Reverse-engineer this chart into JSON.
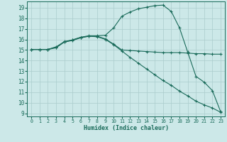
{
  "xlabel": "Humidex (Indice chaleur)",
  "bg_color": "#cce8e8",
  "grid_color": "#aacccc",
  "line_color": "#1a6b5a",
  "xlim": [
    -0.5,
    23.5
  ],
  "ylim": [
    8.7,
    19.6
  ],
  "yticks": [
    9,
    10,
    11,
    12,
    13,
    14,
    15,
    16,
    17,
    18,
    19
  ],
  "xticks": [
    0,
    1,
    2,
    3,
    4,
    5,
    6,
    7,
    8,
    9,
    10,
    11,
    12,
    13,
    14,
    15,
    16,
    17,
    18,
    19,
    20,
    21,
    22,
    23
  ],
  "line1_x": [
    0,
    1,
    2,
    3,
    4,
    5,
    6,
    7,
    8,
    9,
    10,
    11,
    12,
    13,
    14,
    15,
    16,
    17,
    18,
    19,
    20,
    21,
    22,
    23
  ],
  "line1_y": [
    15.05,
    15.05,
    15.05,
    15.25,
    15.8,
    15.95,
    16.2,
    16.3,
    16.3,
    16.05,
    15.55,
    15.0,
    14.95,
    14.9,
    14.85,
    14.8,
    14.75,
    14.75,
    14.75,
    14.7,
    14.65,
    14.65,
    14.6,
    14.6
  ],
  "line2_x": [
    0,
    1,
    2,
    3,
    4,
    5,
    6,
    7,
    8,
    9,
    10,
    11,
    12,
    13,
    14,
    15,
    16,
    17,
    18,
    19,
    20,
    21,
    22,
    23
  ],
  "line2_y": [
    15.05,
    15.05,
    15.05,
    15.2,
    15.75,
    15.9,
    16.15,
    16.3,
    16.25,
    16.0,
    15.5,
    14.9,
    14.3,
    13.75,
    13.2,
    12.65,
    12.1,
    11.65,
    11.1,
    10.65,
    10.15,
    9.8,
    9.5,
    9.1
  ],
  "line3_x": [
    0,
    1,
    2,
    3,
    4,
    5,
    6,
    7,
    8,
    9,
    10,
    11,
    12,
    13,
    14,
    15,
    16,
    17,
    18,
    19,
    20,
    21,
    22,
    23
  ],
  "line3_y": [
    15.05,
    15.05,
    15.05,
    15.3,
    15.75,
    15.95,
    16.2,
    16.35,
    16.35,
    16.4,
    17.1,
    18.2,
    18.6,
    18.9,
    19.05,
    19.2,
    19.25,
    18.65,
    17.1,
    14.8,
    12.5,
    11.95,
    11.15,
    9.15
  ]
}
